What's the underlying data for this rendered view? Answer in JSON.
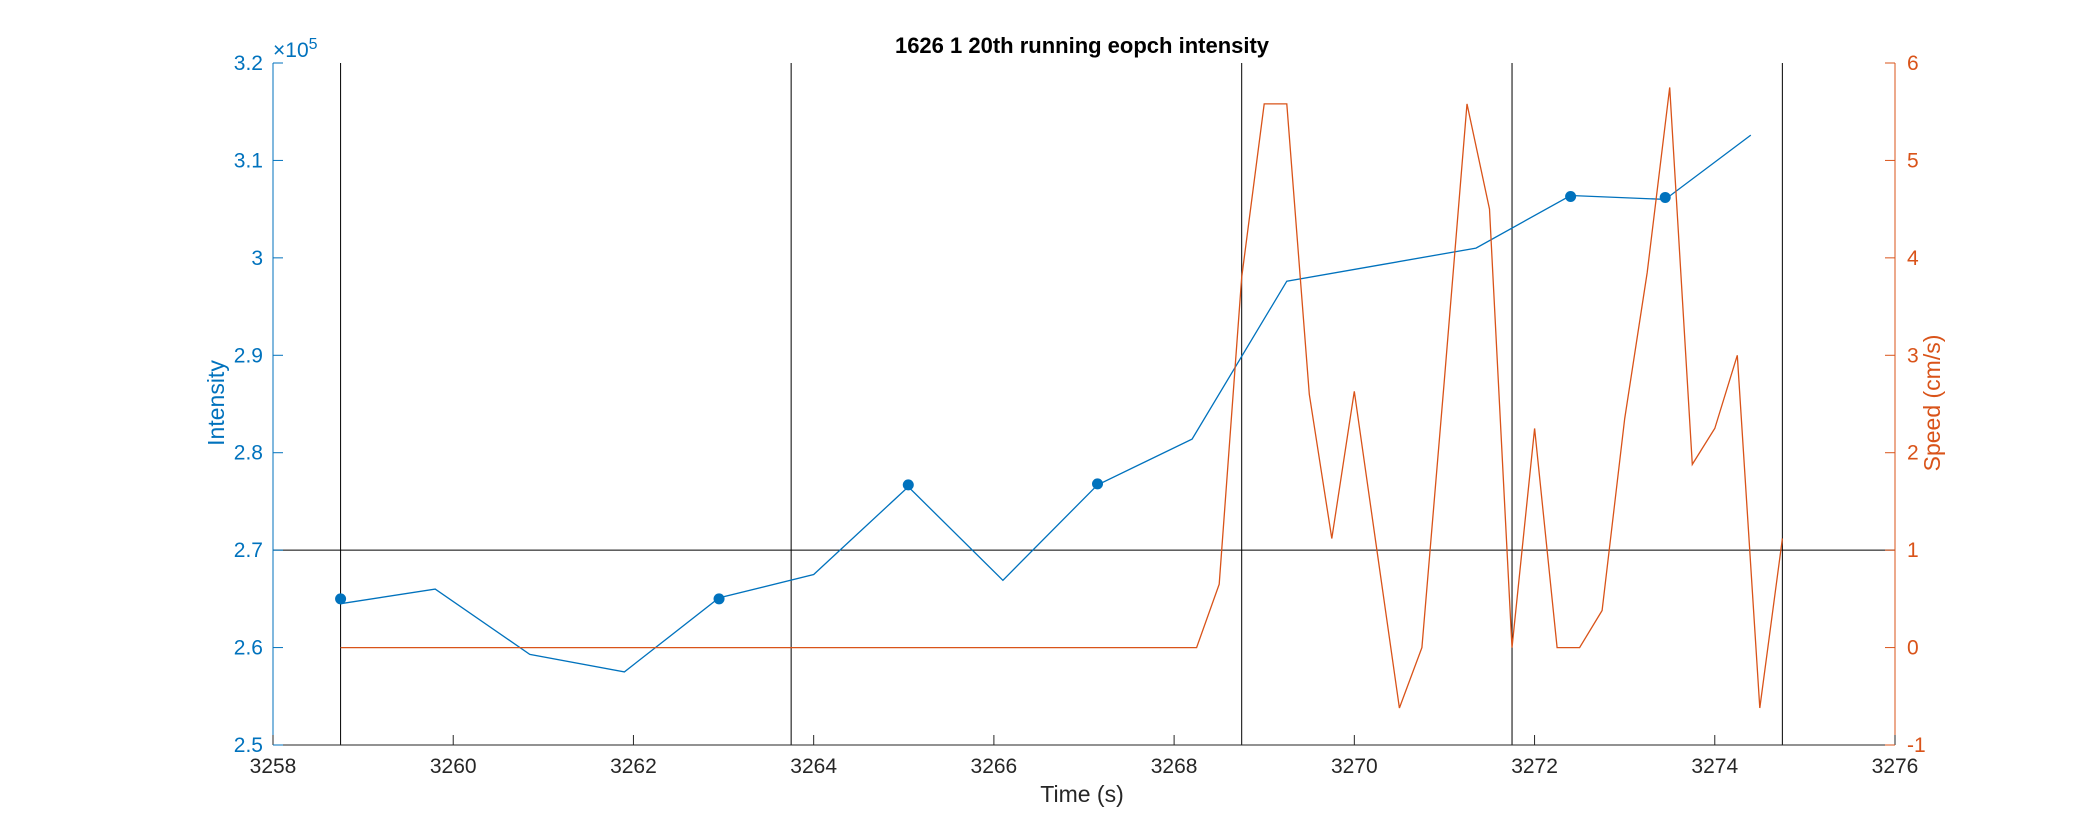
{
  "chart_data": {
    "type": "line",
    "title": "1626 1 20th running eopch intensity",
    "xlabel": "Time (s)",
    "ylabel_left": "Intensity",
    "ylabel_right": "Speed (cm/s)",
    "exponent_label": "×10",
    "exponent_power": "5",
    "xlim": [
      3258,
      3276
    ],
    "ylim_left": [
      250000,
      320000
    ],
    "ylim_right": [
      -1,
      6
    ],
    "xticks": [
      3258,
      3260,
      3262,
      3264,
      3266,
      3268,
      3270,
      3272,
      3274,
      3276
    ],
    "xtick_labels": [
      "3258",
      "3260",
      "3262",
      "3264",
      "3266",
      "3268",
      "3270",
      "3272",
      "3274",
      "3276"
    ],
    "yticks_left": [
      250000,
      260000,
      270000,
      280000,
      290000,
      300000,
      310000,
      320000
    ],
    "ytick_labels_left": [
      "2.5",
      "2.6",
      "2.7",
      "2.8",
      "2.9",
      "3",
      "3.1",
      "3.2"
    ],
    "yticks_right": [
      -1,
      0,
      1,
      2,
      3,
      4,
      5,
      6
    ],
    "ytick_labels_right": [
      "-1",
      "0",
      "1",
      "2",
      "3",
      "4",
      "5",
      "6"
    ],
    "grid": false,
    "colors": {
      "intensity": "#0072BD",
      "speed": "#D95319",
      "reference": "#000000"
    },
    "series": [
      {
        "axis": "left",
        "x": [
          3258.75,
          3259.8,
          3260.85,
          3261.9,
          3262.95,
          3264.0,
          3265.05,
          3266.1,
          3267.15,
          3268.2,
          3269.25,
          3270.3,
          3271.35,
          3272.4,
          3273.45,
          3274.4
        ],
        "values": [
          264500,
          266000,
          259300,
          257500,
          265100,
          267500,
          276500,
          266900,
          276700,
          281400,
          297600,
          299300,
          301000,
          306400,
          306000,
          312600
        ]
      },
      {
        "axis": "right",
        "x": [
          3258.75,
          3259.5,
          3260.5,
          3261.5,
          3262.5,
          3263.5,
          3264.5,
          3265.5,
          3266.5,
          3267.5,
          3268.25,
          3268.5,
          3268.75,
          3269.0,
          3269.25,
          3269.5,
          3269.75,
          3270.0,
          3270.25,
          3270.5,
          3270.75,
          3271.0,
          3271.25,
          3271.5,
          3271.75,
          3272.0,
          3272.25,
          3272.5,
          3272.75,
          3273.0,
          3273.25,
          3273.5,
          3273.75,
          3274.0,
          3274.25,
          3274.5,
          3274.75
        ],
        "values": [
          0,
          0,
          0,
          0,
          0,
          0,
          0,
          0,
          0,
          0,
          0,
          0.65,
          3.8,
          5.58,
          5.58,
          2.6,
          1.12,
          2.63,
          1.0,
          -0.62,
          0,
          2.75,
          5.58,
          4.5,
          0,
          2.25,
          0,
          0,
          0.38,
          2.35,
          3.85,
          5.75,
          1.88,
          2.25,
          3.0,
          -0.62,
          1.12
        ]
      }
    ],
    "markers": {
      "x": [
        3258.75,
        3262.95,
        3265.05,
        3267.15,
        3272.4,
        3273.45
      ],
      "values": [
        265000,
        265000,
        276700,
        276800,
        306300,
        306200
      ]
    },
    "vertical_lines": [
      3258.75,
      3263.75,
      3268.75,
      3271.75,
      3274.75
    ],
    "horizontal_line": 270000
  }
}
